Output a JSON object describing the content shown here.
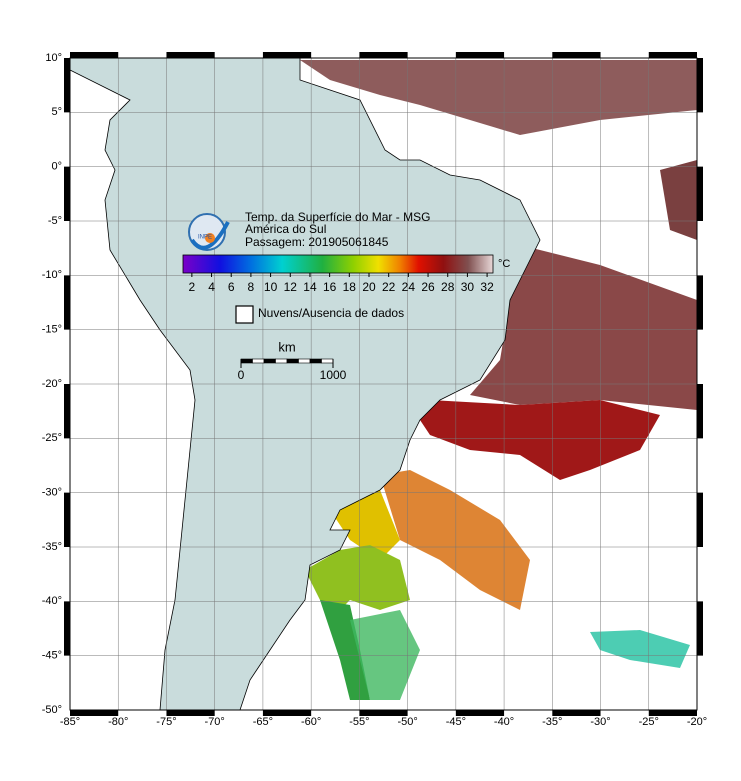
{
  "map": {
    "title_lines": [
      "Temp. da Superfície do Mar - MSG",
      "América do Sul",
      "Passagem: 201905061845"
    ],
    "logo_text": "INPE",
    "colorbar": {
      "unit": "°C",
      "lim": [
        1.1,
        32.6
      ],
      "ticks": [
        2,
        4,
        6,
        8,
        10,
        12,
        14,
        16,
        18,
        20,
        22,
        24,
        26,
        28,
        30,
        32
      ]
    },
    "legend": "Nuvens/Ausencia de dados",
    "scale_bar": {
      "unit": "km",
      "lim": [
        0,
        1000
      ],
      "ticks": [
        0,
        1000
      ]
    },
    "lonlim": [
      -85,
      -20
    ],
    "latlim": [
      -50,
      10
    ],
    "lonticks": [
      {
        "value": -85,
        "label": "-85°"
      },
      {
        "value": -80,
        "label": "-80°"
      },
      {
        "value": -75,
        "label": "-75°"
      },
      {
        "value": -70,
        "label": "-70°"
      },
      {
        "value": -65,
        "label": "-65°"
      },
      {
        "value": -60,
        "label": "-60°"
      },
      {
        "value": -55,
        "label": "-55°"
      },
      {
        "value": -50,
        "label": "-50°"
      },
      {
        "value": -45,
        "label": "-45°"
      },
      {
        "value": -40,
        "label": "-40°"
      },
      {
        "value": -35,
        "label": "-35°"
      },
      {
        "value": -30,
        "label": "-30°"
      },
      {
        "value": -25,
        "label": "-25°"
      },
      {
        "value": -20,
        "label": "-20°"
      }
    ],
    "latticks": [
      {
        "value": 10,
        "label": "10°"
      },
      {
        "value": 5,
        "label": "5°"
      },
      {
        "value": 0,
        "label": "0°"
      },
      {
        "value": -5,
        "label": "-5°"
      },
      {
        "value": -10,
        "label": "-10°"
      },
      {
        "value": -15,
        "label": "-15°"
      },
      {
        "value": -20,
        "label": "-20°"
      },
      {
        "value": -25,
        "label": "-25°"
      },
      {
        "value": -30,
        "label": "-30°"
      },
      {
        "value": -35,
        "label": "-35°"
      },
      {
        "value": -40,
        "label": "-40°"
      },
      {
        "value": -45,
        "label": "-45°"
      },
      {
        "value": -50,
        "label": "-50°"
      }
    ]
  }
}
